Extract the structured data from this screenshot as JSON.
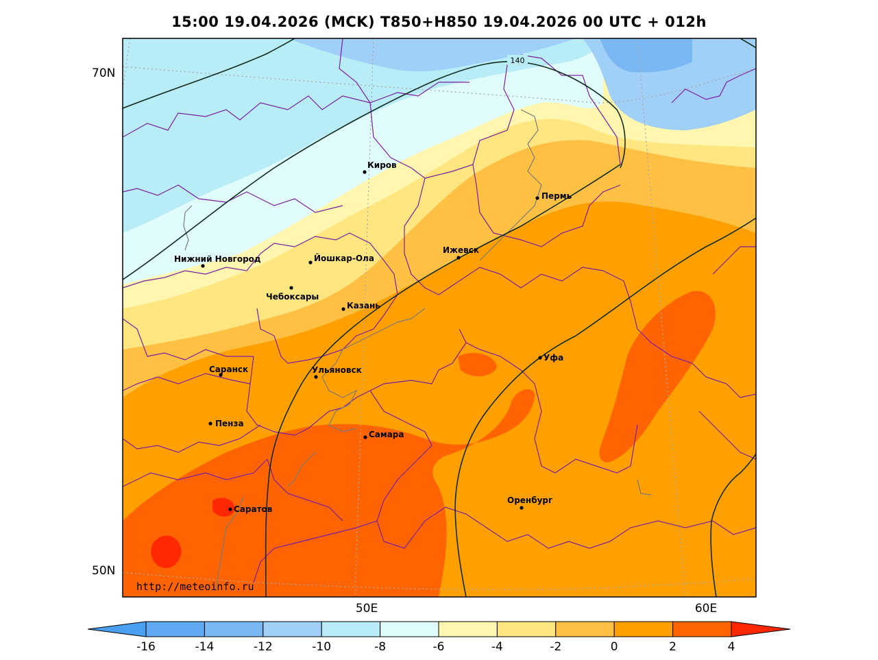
{
  "title": "15:00 19.04.2026 (MCK) T850+H850 19.04.2026 00 UTC + 012h",
  "url": "http://meteoinfo.ru",
  "lat_labels": [
    "70N",
    "50N"
  ],
  "lon_labels": [
    "50E",
    "60E"
  ],
  "contour_value": "140",
  "cities": [
    {
      "name": "Киров"
    },
    {
      "name": "Пермь"
    },
    {
      "name": "Нижний Новгород"
    },
    {
      "name": "Йошкар-Ола"
    },
    {
      "name": "Ижевск"
    },
    {
      "name": "Чебоксары"
    },
    {
      "name": "Казань"
    },
    {
      "name": "Уфа"
    },
    {
      "name": "Саранск"
    },
    {
      "name": "Ульяновск"
    },
    {
      "name": "Пенза"
    },
    {
      "name": "Самара"
    },
    {
      "name": "Оренбург"
    },
    {
      "name": "Саратов"
    }
  ],
  "colorbar": {
    "ticks": [
      "-16",
      "-14",
      "-12",
      "-10",
      "-8",
      "-6",
      "-4",
      "-2",
      "0",
      "2",
      "4"
    ],
    "colors": [
      "#4a9ff0",
      "#5fa9f2",
      "#7ab8f3",
      "#a0cff7",
      "#b8ecf7",
      "#e0fcfc",
      "#fff6b0",
      "#ffe680",
      "#ffc043",
      "#ffa000",
      "#ff6400",
      "#ff2800"
    ]
  }
}
